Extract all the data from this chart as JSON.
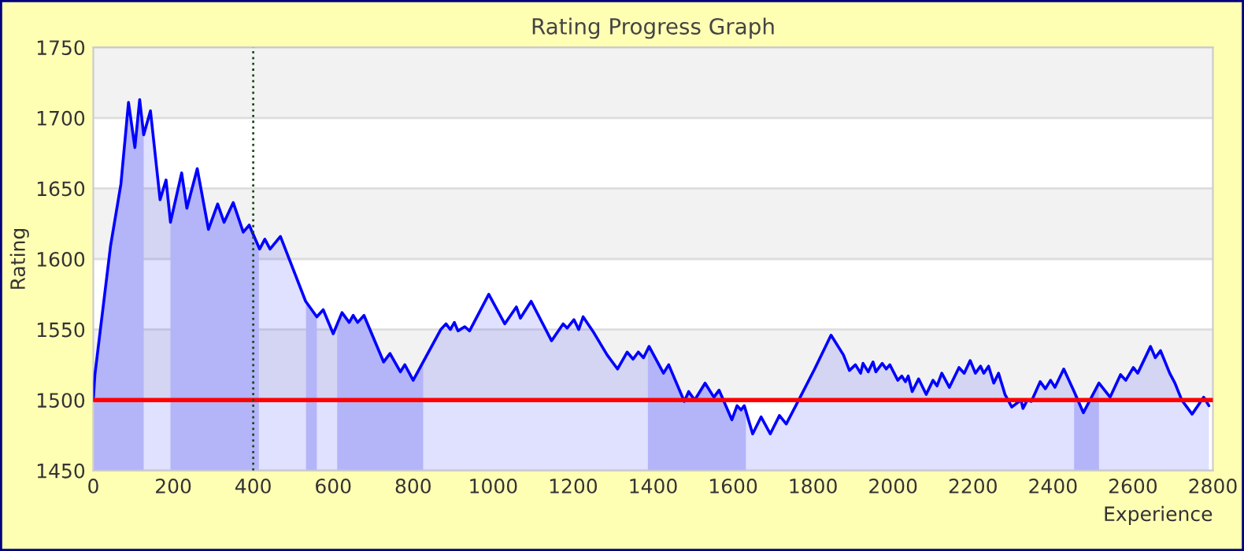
{
  "chart_data": {
    "type": "area",
    "title": "Rating Progress Graph",
    "xlabel": "Experience",
    "ylabel": "Rating",
    "xlim": [
      0,
      2800
    ],
    "xticks": [
      0,
      200,
      400,
      600,
      800,
      1000,
      1200,
      1400,
      1600,
      1800,
      2000,
      2200,
      2400,
      2600,
      2800
    ],
    "ylim": [
      1450,
      1750
    ],
    "yticks": [
      1450,
      1500,
      1550,
      1600,
      1650,
      1700,
      1750
    ],
    "grid": "y",
    "series": [
      {
        "color": "#0000ff",
        "x": [
          0,
          4,
          43,
          69,
          88,
          104,
          116,
          126,
          143,
          167,
          182,
          193,
          221,
          234,
          260,
          288,
          311,
          327,
          350,
          375,
          390,
          416,
          429,
          442,
          468,
          531,
          559,
          575,
          600,
          622,
          640,
          650,
          661,
          677,
          726,
          742,
          768,
          779,
          800,
          869,
          882,
          893,
          903,
          912,
          929,
          941,
          989,
          1029,
          1058,
          1068,
          1095,
          1146,
          1175,
          1185,
          1202,
          1214,
          1225,
          1249,
          1285,
          1311,
          1335,
          1350,
          1363,
          1376,
          1390,
          1426,
          1439,
          1478,
          1489,
          1504,
          1530,
          1552,
          1565,
          1597,
          1610,
          1620,
          1628,
          1649,
          1670,
          1693,
          1716,
          1733,
          1766,
          1804,
          1845,
          1876,
          1891,
          1906,
          1919,
          1925,
          1938,
          1950,
          1957,
          1973,
          1983,
          1992,
          2012,
          2022,
          2031,
          2038,
          2048,
          2064,
          2083,
          2100,
          2110,
          2122,
          2141,
          2165,
          2178,
          2193,
          2206,
          2219,
          2227,
          2239,
          2252,
          2264,
          2280,
          2297,
          2320,
          2325,
          2336,
          2346,
          2368,
          2381,
          2394,
          2405,
          2427,
          2453,
          2476,
          2515,
          2543,
          2569,
          2582,
          2601,
          2612,
          2644,
          2656,
          2669,
          2692,
          2705,
          2722,
          2748,
          2777,
          2790
        ],
        "values": [
          1500,
          1518,
          1609,
          1653,
          1711,
          1679,
          1713,
          1688,
          1705,
          1642,
          1656,
          1626,
          1661,
          1636,
          1664,
          1621,
          1639,
          1626,
          1640,
          1619,
          1624,
          1607,
          1614,
          1607,
          1616,
          1570,
          1559,
          1564,
          1547,
          1562,
          1555,
          1560,
          1555,
          1560,
          1527,
          1533,
          1520,
          1525,
          1514,
          1550,
          1554,
          1550,
          1555,
          1549,
          1552,
          1549,
          1575,
          1554,
          1566,
          1558,
          1570,
          1542,
          1554,
          1551,
          1557,
          1550,
          1559,
          1549,
          1532,
          1522,
          1534,
          1529,
          1534,
          1530,
          1538,
          1519,
          1525,
          1499,
          1506,
          1500,
          1512,
          1502,
          1507,
          1486,
          1496,
          1493,
          1496,
          1476,
          1488,
          1476,
          1489,
          1483,
          1501,
          1522,
          1546,
          1532,
          1521,
          1525,
          1519,
          1526,
          1520,
          1527,
          1520,
          1526,
          1522,
          1525,
          1514,
          1517,
          1513,
          1517,
          1506,
          1515,
          1504,
          1514,
          1510,
          1519,
          1509,
          1523,
          1519,
          1528,
          1519,
          1524,
          1519,
          1524,
          1512,
          1519,
          1504,
          1495,
          1500,
          1494,
          1500,
          1499,
          1513,
          1508,
          1514,
          1509,
          1522,
          1506,
          1491,
          1512,
          1502,
          1518,
          1514,
          1523,
          1519,
          1538,
          1530,
          1535,
          1519,
          1512,
          1500,
          1490,
          1502,
          1496
        ]
      }
    ],
    "ref_lines": [
      {
        "axis": "y",
        "value": 1500,
        "color": "#ff0000",
        "line_style": "solid"
      },
      {
        "axis": "x",
        "value": 400,
        "color": "#1a4a1a",
        "line_style": "dotted"
      }
    ],
    "bands": [
      {
        "axis": "x",
        "from": 0,
        "to": 126,
        "color": "#cdcdf9"
      },
      {
        "axis": "x",
        "from": 193,
        "to": 414,
        "color": "#cdcdf9"
      },
      {
        "axis": "x",
        "from": 532,
        "to": 559,
        "color": "#cdcdf9"
      },
      {
        "axis": "x",
        "from": 610,
        "to": 825,
        "color": "#cdcdf9"
      },
      {
        "axis": "x",
        "from": 1387,
        "to": 1632,
        "color": "#cdcdf9"
      },
      {
        "axis": "x",
        "from": 2453,
        "to": 2515,
        "color": "#cdcdf9"
      }
    ]
  }
}
